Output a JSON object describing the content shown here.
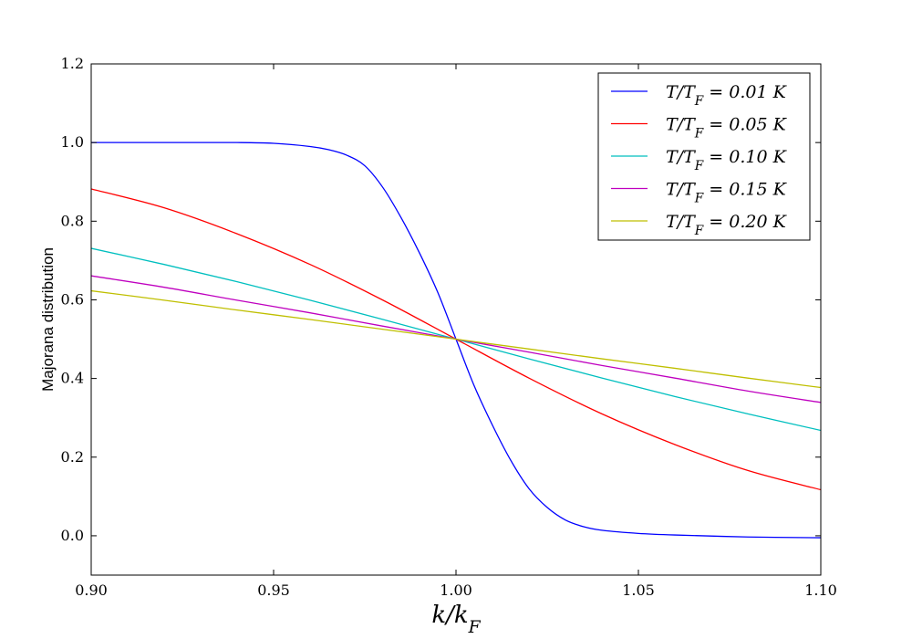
{
  "chart_data": {
    "type": "line",
    "title": "",
    "xlabel": "k/k_F",
    "ylabel": "Majorana distribution",
    "xlim": [
      0.9,
      1.1
    ],
    "ylim": [
      -0.1,
      1.2
    ],
    "xticks": [
      0.9,
      0.95,
      1.0,
      1.05,
      1.1
    ],
    "xtick_labels": [
      "0.90",
      "0.95",
      "1.00",
      "1.05",
      "1.10"
    ],
    "yticks": [
      0.0,
      0.2,
      0.4,
      0.6,
      0.8,
      1.0,
      1.2
    ],
    "ytick_labels": [
      "0.0",
      "0.2",
      "0.4",
      "0.6",
      "0.8",
      "1.0",
      "1.2"
    ],
    "grid": false,
    "legend_position": "top-right",
    "series": [
      {
        "name": "T/T_F = 0.01 K",
        "color": "#0000ff",
        "x": [
          0.9,
          0.92,
          0.94,
          0.95,
          0.96,
          0.965,
          0.97,
          0.975,
          0.98,
          0.985,
          0.99,
          0.995,
          1.0,
          1.005,
          1.01,
          1.015,
          1.02,
          1.025,
          1.03,
          1.035,
          1.04,
          1.05,
          1.06,
          1.08,
          1.1
        ],
        "y": [
          1.0,
          1.0,
          1.0,
          0.998,
          0.99,
          0.982,
          0.968,
          0.941,
          0.885,
          0.808,
          0.719,
          0.619,
          0.5,
          0.381,
          0.281,
          0.192,
          0.12,
          0.072,
          0.04,
          0.023,
          0.014,
          0.006,
          0.002,
          -0.003,
          -0.005
        ]
      },
      {
        "name": "T/T_F = 0.05 K",
        "color": "#ff0000",
        "x": [
          0.9,
          0.92,
          0.94,
          0.96,
          0.98,
          1.0,
          1.02,
          1.04,
          1.06,
          1.08,
          1.1
        ],
        "y": [
          0.882,
          0.834,
          0.768,
          0.69,
          0.599,
          0.5,
          0.401,
          0.31,
          0.232,
          0.166,
          0.117
        ]
      },
      {
        "name": "T/T_F = 0.10 K",
        "color": "#00bfbf",
        "x": [
          0.9,
          0.92,
          0.94,
          0.96,
          0.98,
          1.0,
          1.02,
          1.04,
          1.06,
          1.08,
          1.1
        ],
        "y": [
          0.731,
          0.69,
          0.646,
          0.599,
          0.55,
          0.5,
          0.45,
          0.401,
          0.354,
          0.31,
          0.268
        ]
      },
      {
        "name": "T/T_F = 0.15 K",
        "color": "#bf00bf",
        "x": [
          0.9,
          0.92,
          0.94,
          0.96,
          0.98,
          1.0,
          1.02,
          1.04,
          1.06,
          1.08,
          1.1
        ],
        "y": [
          0.661,
          0.632,
          0.599,
          0.567,
          0.533,
          0.5,
          0.467,
          0.433,
          0.401,
          0.368,
          0.339
        ]
      },
      {
        "name": "T/T_F = 0.20 K",
        "color": "#bfbf00",
        "x": [
          0.9,
          0.92,
          0.94,
          0.96,
          0.98,
          1.0,
          1.02,
          1.04,
          1.06,
          1.08,
          1.1
        ],
        "y": [
          0.623,
          0.599,
          0.574,
          0.55,
          0.525,
          0.5,
          0.475,
          0.45,
          0.426,
          0.401,
          0.377
        ]
      }
    ]
  }
}
